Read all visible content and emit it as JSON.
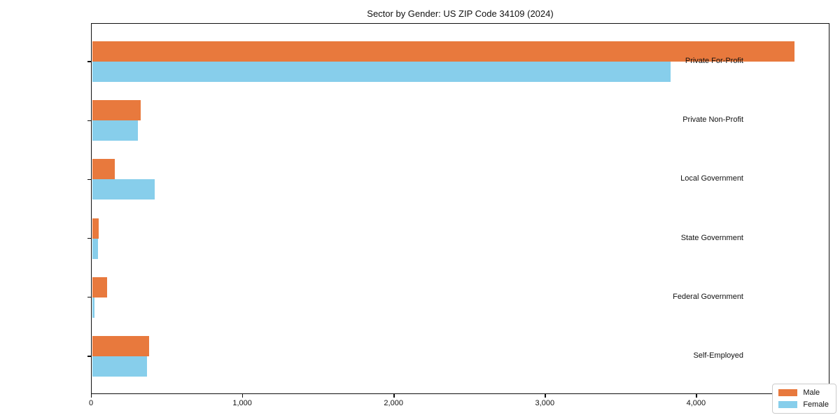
{
  "figure": {
    "title": "Sector by Gender: US ZIP Code 34109 (2024)"
  },
  "colors": {
    "male": "#e8793d",
    "female": "#87ceeb",
    "axis": "#111111",
    "background": "#ffffff",
    "legend_border": "#cccccc"
  },
  "chart_data": {
    "type": "bar",
    "orientation": "horizontal",
    "title": "Sector by Gender: US ZIP Code 34109 (2024)",
    "categories": [
      "Private For-Profit",
      "Private Non-Profit",
      "Local Government",
      "State Government",
      "Federal Government",
      "Self-Employed"
    ],
    "series": [
      {
        "name": "Male",
        "color": "#e8793d",
        "values": [
          4650,
          320,
          148,
          42,
          98,
          375
        ]
      },
      {
        "name": "Female",
        "color": "#87ceeb",
        "values": [
          3830,
          300,
          412,
          36,
          12,
          362
        ]
      }
    ],
    "xlabel": "",
    "ylabel": "",
    "xlim": [
      0,
      4882
    ],
    "x_ticks": [
      0,
      1000,
      2000,
      3000,
      4000
    ],
    "x_tick_labels": [
      "0",
      "1,000",
      "2,000",
      "3,000",
      "4,000"
    ],
    "grid": false,
    "legend_position": "lower right"
  }
}
